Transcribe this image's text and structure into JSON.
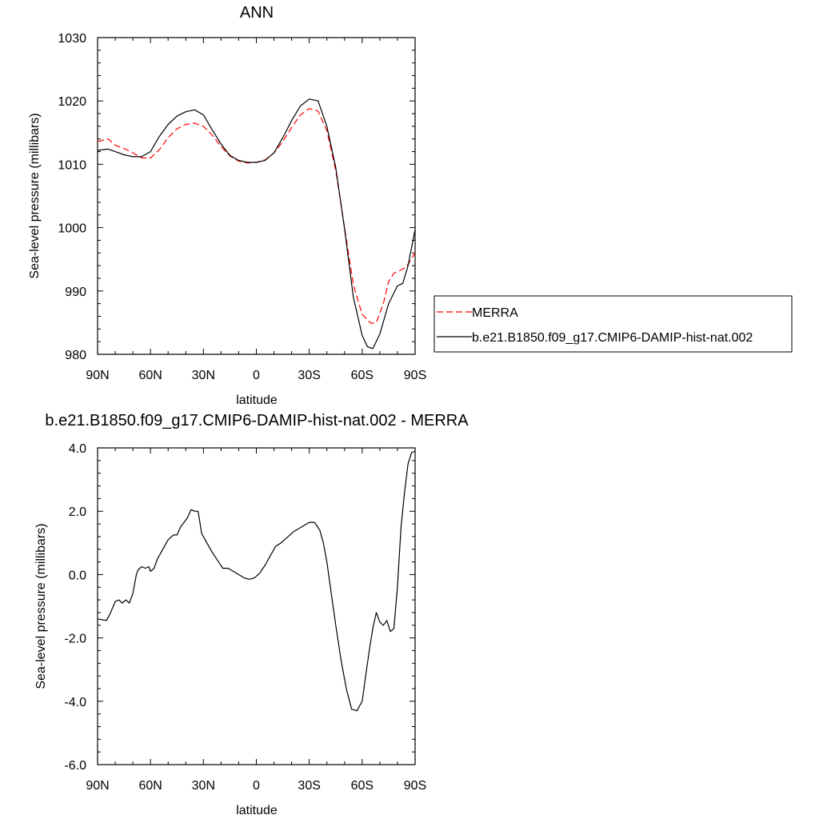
{
  "chart_data": [
    {
      "type": "line",
      "title": "ANN",
      "xlabel": "latitude",
      "ylabel": "Sea-level pressure (millibars)",
      "x_ticks": [
        90,
        60,
        30,
        0,
        -30,
        -60,
        -90
      ],
      "x_tick_labels": [
        "90N",
        "60N",
        "30N",
        "0",
        "30S",
        "60S",
        "90S"
      ],
      "xlim": [
        90,
        -90
      ],
      "y_ticks": [
        980,
        990,
        1000,
        1010,
        1020,
        1030
      ],
      "y_tick_labels": [
        "980",
        "990",
        "1000",
        "1010",
        "1020",
        "1030"
      ],
      "ylim": [
        980,
        1030
      ],
      "grid": false,
      "legend_position": "right-outside",
      "series": [
        {
          "name": "MERRA",
          "color": "#ff0000",
          "dash": "dashed",
          "x": [
            90,
            84,
            80,
            75,
            70,
            65,
            60,
            55,
            50,
            45,
            40,
            35,
            30,
            25,
            20,
            15,
            10,
            5,
            0,
            -5,
            -10,
            -15,
            -20,
            -25,
            -30,
            -35,
            -40,
            -45,
            -50,
            -55,
            -60,
            -65,
            -68,
            -72,
            -75,
            -78,
            -80,
            -85,
            -90
          ],
          "values": [
            1013.6,
            1014.0,
            1013.0,
            1012.5,
            1011.8,
            1011.0,
            1011.0,
            1012.3,
            1014.2,
            1015.6,
            1016.3,
            1016.5,
            1016.0,
            1014.6,
            1012.8,
            1011.3,
            1010.5,
            1010.2,
            1010.3,
            1010.7,
            1011.8,
            1013.6,
            1015.8,
            1017.8,
            1018.8,
            1018.4,
            1015.3,
            1009.0,
            1000.0,
            991.0,
            986.3,
            984.9,
            985.0,
            988.0,
            991.5,
            992.8,
            993.0,
            993.8,
            996.0
          ]
        },
        {
          "name": "b.e21.B1850.f09_g17.CMIP6-DAMIP-hist-nat.002",
          "color": "#000000",
          "dash": "solid",
          "x": [
            90,
            84,
            80,
            75,
            70,
            65,
            60,
            55,
            50,
            45,
            40,
            35,
            30,
            25,
            20,
            15,
            10,
            5,
            0,
            -5,
            -10,
            -15,
            -20,
            -25,
            -30,
            -35,
            -40,
            -45,
            -50,
            -55,
            -60,
            -63,
            -66,
            -70,
            -75,
            -80,
            -83,
            -86,
            -90
          ],
          "values": [
            1012.2,
            1012.4,
            1012.0,
            1011.5,
            1011.2,
            1011.2,
            1012.0,
            1014.4,
            1016.3,
            1017.6,
            1018.3,
            1018.6,
            1017.8,
            1015.4,
            1013.2,
            1011.4,
            1010.6,
            1010.3,
            1010.3,
            1010.6,
            1011.8,
            1014.2,
            1016.9,
            1019.2,
            1020.3,
            1020.0,
            1016.0,
            1009.5,
            999.8,
            989.0,
            983.0,
            981.2,
            980.9,
            983.2,
            988.0,
            990.8,
            991.2,
            994.0,
            999.7
          ]
        }
      ]
    },
    {
      "type": "line",
      "title": "b.e21.B1850.f09_g17.CMIP6-DAMIP-hist-nat.002 - MERRA",
      "xlabel": "latitude",
      "ylabel": "Sea-level pressure (millibars)",
      "x_ticks": [
        90,
        60,
        30,
        0,
        -30,
        -60,
        -90
      ],
      "x_tick_labels": [
        "90N",
        "60N",
        "30N",
        "0",
        "30S",
        "60S",
        "90S"
      ],
      "xlim": [
        90,
        -90
      ],
      "y_ticks": [
        -6,
        -4,
        -2,
        0,
        2,
        4
      ],
      "y_tick_labels": [
        "-6.0",
        "-4.0",
        "-2.0",
        "0.0",
        "2.0",
        "4.0"
      ],
      "ylim": [
        -6,
        4
      ],
      "grid": false,
      "series": [
        {
          "color": "#000000",
          "dash": "solid",
          "x": [
            90,
            85,
            83,
            80,
            78,
            76,
            74,
            72,
            70,
            68,
            67,
            65,
            63,
            61,
            60,
            58,
            56,
            53,
            50,
            47,
            45,
            43,
            41,
            39,
            37,
            35,
            33,
            31,
            29,
            27,
            25,
            22,
            19,
            16,
            13,
            10,
            7,
            4,
            1,
            -2,
            -5,
            -8,
            -11,
            -14,
            -15,
            -18,
            -21,
            -24,
            -27,
            -30,
            -33,
            -36,
            -38,
            -40,
            -42,
            -45,
            -48,
            -51,
            -54,
            -57,
            -60,
            -62,
            -64,
            -66,
            -68,
            -70,
            -72,
            -74,
            -76,
            -78,
            -80,
            -82,
            -84,
            -86,
            -88,
            -90
          ],
          "values": [
            -1.4,
            -1.45,
            -1.25,
            -0.85,
            -0.8,
            -0.9,
            -0.8,
            -0.9,
            -0.6,
            0.0,
            0.15,
            0.25,
            0.2,
            0.25,
            0.1,
            0.2,
            0.5,
            0.8,
            1.1,
            1.25,
            1.25,
            1.5,
            1.65,
            1.8,
            2.05,
            2.0,
            2.0,
            1.3,
            1.1,
            0.9,
            0.7,
            0.45,
            0.2,
            0.2,
            0.1,
            0.0,
            -0.1,
            -0.15,
            -0.1,
            0.05,
            0.3,
            0.6,
            0.9,
            1.0,
            1.05,
            1.2,
            1.35,
            1.45,
            1.55,
            1.65,
            1.65,
            1.4,
            1.0,
            0.4,
            -0.4,
            -1.6,
            -2.7,
            -3.6,
            -4.25,
            -4.3,
            -4.0,
            -3.2,
            -2.4,
            -1.7,
            -1.2,
            -1.5,
            -1.6,
            -1.45,
            -1.8,
            -1.7,
            -0.4,
            1.5,
            2.6,
            3.5,
            3.85,
            3.9
          ]
        }
      ]
    }
  ]
}
